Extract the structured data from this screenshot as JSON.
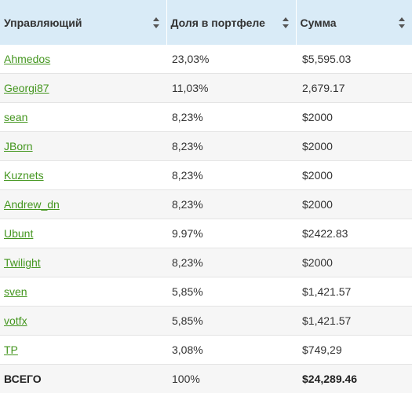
{
  "table": {
    "columns": [
      {
        "label": "Управляющий"
      },
      {
        "label": "Доля в портфеле"
      },
      {
        "label": "Сумма"
      }
    ],
    "rows": [
      {
        "manager": "Ahmedos",
        "share": "23,03%",
        "sum": "$5,595.03"
      },
      {
        "manager": "Georgi87",
        "share": "11,03%",
        "sum": "2,679.17"
      },
      {
        "manager": "sean",
        "share": "8,23%",
        "sum": "$2000"
      },
      {
        "manager": "JBorn",
        "share": "8,23%",
        "sum": "$2000"
      },
      {
        "manager": "Kuznets",
        "share": "8,23%",
        "sum": "$2000"
      },
      {
        "manager": "Andrew_dn",
        "share": "8,23%",
        "sum": "$2000"
      },
      {
        "manager": "Ubunt",
        "share": "9.97%",
        "sum": "$2422.83"
      },
      {
        "manager": "Twilight",
        "share": "8,23%",
        "sum": "$2000"
      },
      {
        "manager": "sven",
        "share": "5,85%",
        "sum": "$1,421.57"
      },
      {
        "manager": "votfx",
        "share": "5,85%",
        "sum": "$1,421.57"
      },
      {
        "manager": "TP",
        "share": "3,08%",
        "sum": "$749,29"
      }
    ],
    "total": {
      "label": "ВСЕГО",
      "share": "100%",
      "sum": "$24,289.46"
    }
  },
  "colors": {
    "header_bg": "#d9ebf7",
    "link": "#44961f",
    "stripe": "#f6f6f6"
  }
}
